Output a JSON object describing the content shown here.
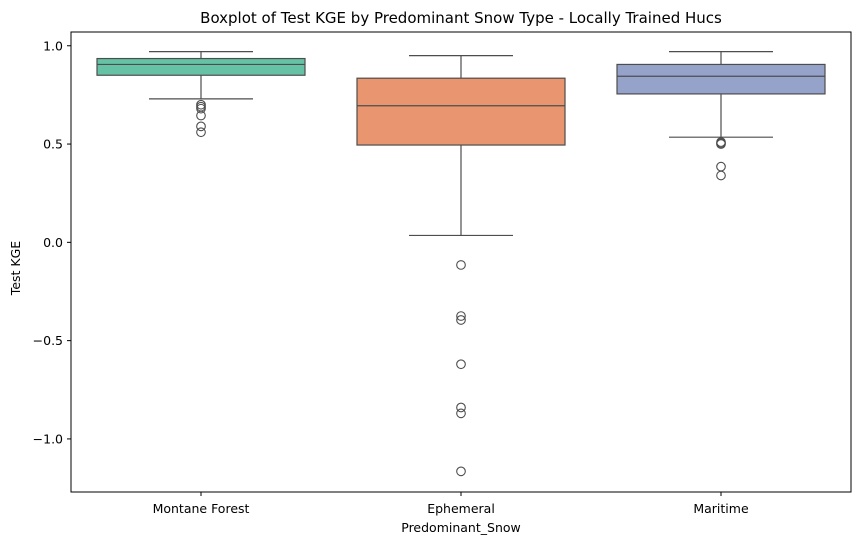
{
  "chart_data": {
    "type": "boxplot",
    "title": "Boxplot of Test KGE by Predominant Snow Type - Locally Trained Hucs",
    "xlabel": "Predominant_Snow",
    "ylabel": "Test KGE",
    "ylim": [
      -1.27,
      1.07
    ],
    "yticks": [
      -1.0,
      -0.5,
      0.0,
      0.5,
      1.0
    ],
    "ytick_labels": [
      "−1.0",
      "−0.5",
      "0.0",
      "0.5",
      "1.0"
    ],
    "grid": false,
    "categories": [
      "Montane Forest",
      "Ephemeral",
      "Maritime"
    ],
    "boxes": [
      {
        "category": "Montane Forest",
        "color": "#66c2a5",
        "whisker_low": 0.73,
        "q1": 0.85,
        "median": 0.905,
        "q3": 0.935,
        "whisker_high": 0.97,
        "outliers": [
          0.7,
          0.69,
          0.68,
          0.645,
          0.59,
          0.56
        ]
      },
      {
        "category": "Ephemeral",
        "color": "#e9956f",
        "whisker_low": 0.035,
        "q1": 0.495,
        "median": 0.695,
        "q3": 0.835,
        "whisker_high": 0.95,
        "outliers": [
          -0.115,
          -0.375,
          -0.395,
          -0.62,
          -0.84,
          -0.87,
          -1.165
        ]
      },
      {
        "category": "Maritime",
        "color": "#95a3cb",
        "whisker_low": 0.535,
        "q1": 0.755,
        "median": 0.845,
        "q3": 0.905,
        "whisker_high": 0.97,
        "outliers": [
          0.51,
          0.505,
          0.5,
          0.385,
          0.34
        ]
      }
    ]
  }
}
